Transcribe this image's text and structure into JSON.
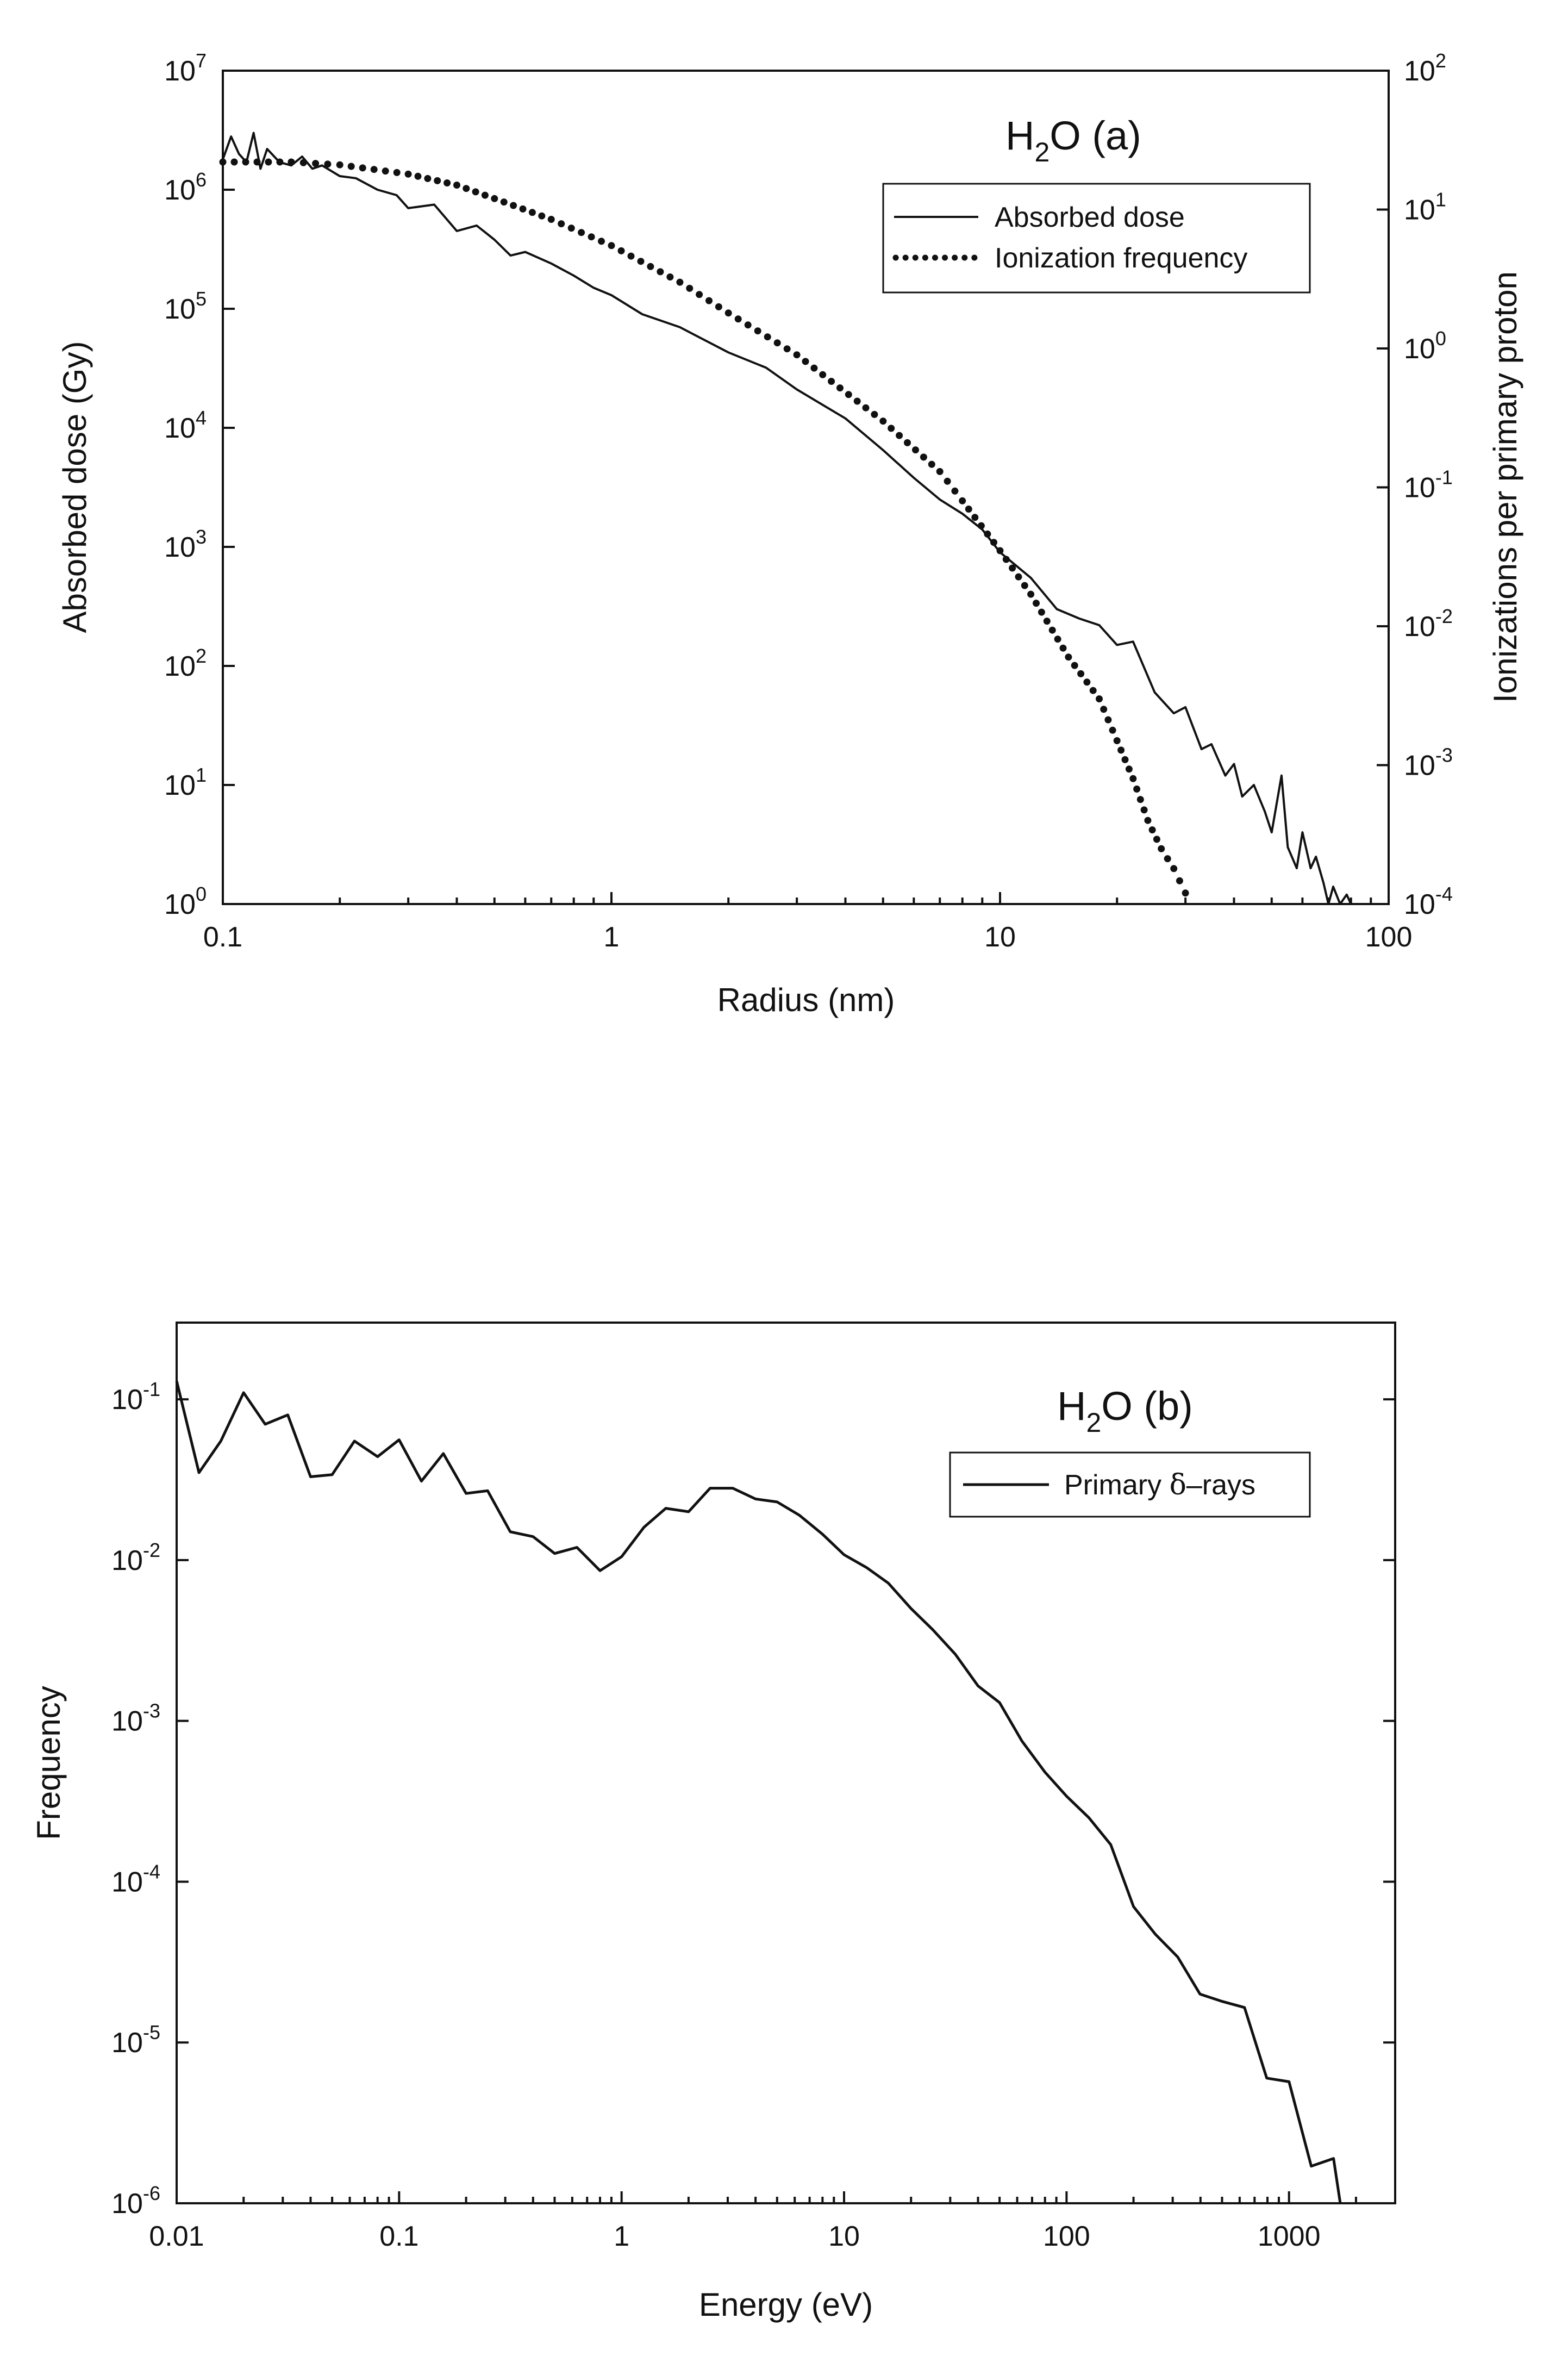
{
  "chart_data": [
    {
      "id": "a",
      "type": "line",
      "title_parts": [
        "H",
        "2",
        "O (a)"
      ],
      "xlabel": "Radius (nm)",
      "ylabel": "Absorbed dose (Gy)",
      "y2label": "Ionizations per primary proton",
      "xscale": "log",
      "yscale": "log",
      "y2scale": "log",
      "xlim": [
        0.1,
        100
      ],
      "ylim": [
        1,
        10000000
      ],
      "y2lim": [
        0.0001,
        100
      ],
      "x_ticks": [
        {
          "value": 0.1,
          "label": "0.1"
        },
        {
          "value": 1,
          "label": "1"
        },
        {
          "value": 10,
          "label": "10"
        },
        {
          "value": 100,
          "label": "100"
        }
      ],
      "y_ticks": [
        {
          "value": 1,
          "base": "10",
          "exp": "0"
        },
        {
          "value": 10,
          "base": "10",
          "exp": "1"
        },
        {
          "value": 100,
          "base": "10",
          "exp": "2"
        },
        {
          "value": 1000,
          "base": "10",
          "exp": "3"
        },
        {
          "value": 10000,
          "base": "10",
          "exp": "4"
        },
        {
          "value": 100000,
          "base": "10",
          "exp": "5"
        },
        {
          "value": 1000000,
          "base": "10",
          "exp": "6"
        },
        {
          "value": 10000000,
          "base": "10",
          "exp": "7"
        }
      ],
      "y2_ticks": [
        {
          "value": 0.0001,
          "base": "10",
          "exp": "-4"
        },
        {
          "value": 0.001,
          "base": "10",
          "exp": "-3"
        },
        {
          "value": 0.01,
          "base": "10",
          "exp": "-2"
        },
        {
          "value": 0.1,
          "base": "10",
          "exp": "-1"
        },
        {
          "value": 1,
          "base": "10",
          "exp": "0"
        },
        {
          "value": 10,
          "base": "10",
          "exp": "1"
        },
        {
          "value": 100,
          "base": "10",
          "exp": "2"
        }
      ],
      "legend_position": "top-right",
      "series": [
        {
          "name": "Absorbed dose",
          "style": "solid",
          "axis": "left",
          "x": [
            0.1,
            0.105,
            0.11,
            0.115,
            0.12,
            0.125,
            0.13,
            0.14,
            0.15,
            0.16,
            0.17,
            0.18,
            0.2,
            0.22,
            0.25,
            0.28,
            0.3,
            0.35,
            0.4,
            0.45,
            0.5,
            0.55,
            0.6,
            0.7,
            0.8,
            0.9,
            1.0,
            1.2,
            1.5,
            2.0,
            2.5,
            3.0,
            4.0,
            5.0,
            6.0,
            7.0,
            8.0,
            9.0,
            10.0,
            12.0,
            14.0,
            16.0,
            18.0,
            20.0,
            22.0,
            25.0,
            28.0,
            30.0,
            33.0,
            35.0,
            38.0,
            40.0,
            42.0,
            45.0,
            48.0,
            50.0,
            53.0,
            55.0,
            58.0,
            60.0,
            63.0,
            65.0,
            68.0,
            70.0,
            72.0,
            75.0,
            78.0,
            80.0,
            85.0,
            90.0
          ],
          "y": [
            1800000,
            2800000,
            2000000,
            1700000,
            3000000,
            1500000,
            2200000,
            1700000,
            1600000,
            1900000,
            1500000,
            1600000,
            1300000,
            1250000,
            1000000,
            900000,
            700000,
            750000,
            450000,
            500000,
            380000,
            280000,
            300000,
            240000,
            190000,
            150000,
            130000,
            90000,
            70000,
            43000,
            32000,
            21000,
            12000,
            6500,
            3800,
            2500,
            1900,
            1400,
            900,
            550,
            300,
            250,
            220,
            150,
            160,
            60,
            40,
            45,
            20,
            22,
            12,
            15,
            8,
            10,
            6,
            4,
            12,
            3,
            2,
            4,
            2,
            2.5,
            1.5,
            1.0,
            1.4,
            0.9,
            1.2,
            1.0,
            0.9,
            1.0
          ]
        },
        {
          "name": "Ionization frequency",
          "style": "dotted",
          "axis": "right",
          "x": [
            0.1,
            0.15,
            0.2,
            0.3,
            0.4,
            0.5,
            0.7,
            1.0,
            1.5,
            2.0,
            3.0,
            5.0,
            7.0,
            8.0,
            10.0,
            12.0,
            15.0,
            18.0,
            20.0,
            22.0,
            24.0,
            26.0,
            28.0,
            30.0,
            32.0
          ],
          "y": [
            22,
            22,
            21,
            18,
            15,
            12,
            8.5,
            5.5,
            3.0,
            1.8,
            0.9,
            0.3,
            0.13,
            0.08,
            0.035,
            0.017,
            0.006,
            0.003,
            0.0015,
            0.0008,
            0.0004,
            0.00025,
            0.00018,
            0.00012,
            0.0001
          ]
        }
      ]
    },
    {
      "id": "b",
      "type": "line",
      "title_parts": [
        "H",
        "2",
        "O (b)"
      ],
      "xlabel": "Energy (eV)",
      "ylabel": "Frequency",
      "xscale": "log",
      "yscale": "log",
      "xlim": [
        0.01,
        3000
      ],
      "ylim": [
        1e-06,
        0.3
      ],
      "x_ticks": [
        {
          "value": 0.01,
          "label": "0.01"
        },
        {
          "value": 0.1,
          "label": "0.1"
        },
        {
          "value": 1,
          "label": "1"
        },
        {
          "value": 10,
          "label": "10"
        },
        {
          "value": 100,
          "label": "100"
        },
        {
          "value": 1000,
          "label": "1000"
        }
      ],
      "y_ticks": [
        {
          "value": 1e-06,
          "base": "10",
          "exp": "-6"
        },
        {
          "value": 1e-05,
          "base": "10",
          "exp": "-5"
        },
        {
          "value": 0.0001,
          "base": "10",
          "exp": "-4"
        },
        {
          "value": 0.001,
          "base": "10",
          "exp": "-3"
        },
        {
          "value": 0.01,
          "base": "10",
          "exp": "-2"
        },
        {
          "value": 0.1,
          "base": "10",
          "exp": "-1"
        }
      ],
      "legend_position": "top-right",
      "series": [
        {
          "name": "Primary δ–rays",
          "legend_parts": [
            "Primary ",
            "δ",
            "–rays"
          ],
          "style": "solid",
          "x": [
            0.01,
            0.0126,
            0.0158,
            0.02,
            0.025,
            0.0316,
            0.04,
            0.05,
            0.063,
            0.08,
            0.1,
            0.126,
            0.158,
            0.2,
            0.25,
            0.316,
            0.4,
            0.5,
            0.63,
            0.8,
            1.0,
            1.26,
            1.58,
            2.0,
            2.5,
            3.16,
            4.0,
            5.0,
            6.3,
            8.0,
            10,
            12.6,
            15.8,
            20,
            25,
            31.6,
            40,
            50,
            63,
            80,
            100,
            126,
            158,
            200,
            251,
            316,
            398,
            501,
            631,
            794,
            1000,
            1259,
            1585,
            1700
          ],
          "y": [
            0.13,
            0.035,
            0.055,
            0.11,
            0.07,
            0.08,
            0.033,
            0.034,
            0.055,
            0.044,
            0.056,
            0.031,
            0.046,
            0.026,
            0.027,
            0.015,
            0.014,
            0.011,
            0.012,
            0.0086,
            0.0105,
            0.016,
            0.021,
            0.02,
            0.028,
            0.028,
            0.024,
            0.023,
            0.019,
            0.0145,
            0.0108,
            0.009,
            0.0072,
            0.005,
            0.0037,
            0.0026,
            0.00165,
            0.0013,
            0.00075,
            0.00048,
            0.00034,
            0.00025,
            0.00017,
            7e-05,
            4.7e-05,
            3.4e-05,
            2e-05,
            1.8e-05,
            1.65e-05,
            6e-06,
            5.7e-06,
            1.7e-06,
            1.9e-06,
            9e-07
          ]
        }
      ]
    }
  ]
}
